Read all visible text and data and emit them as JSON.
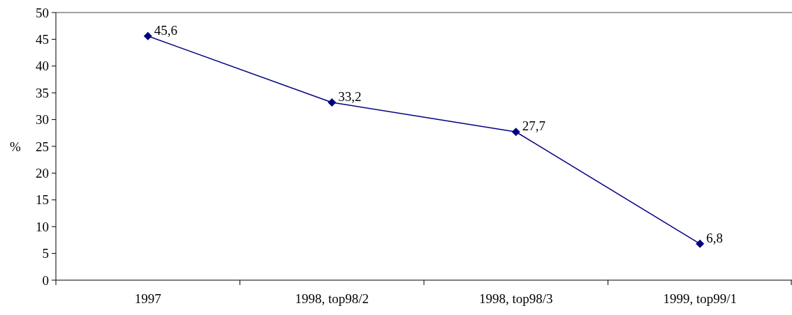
{
  "chart_data": {
    "type": "line",
    "ylabel": "%",
    "categories": [
      "1997",
      "1998, top98/2",
      "1998, top98/3",
      "1999, top99/1"
    ],
    "series": [
      {
        "color": "#000080",
        "values": [
          45.6,
          33.2,
          27.7,
          6.8
        ],
        "value_labels": [
          "45,6",
          "33,2",
          "27,7",
          "6,8"
        ]
      }
    ],
    "ylim": [
      0,
      50
    ],
    "yticks": [
      0,
      5,
      10,
      15,
      20,
      25,
      30,
      35,
      40,
      45,
      50
    ],
    "marker": "diamond",
    "line_style": "solid",
    "grid": false
  }
}
